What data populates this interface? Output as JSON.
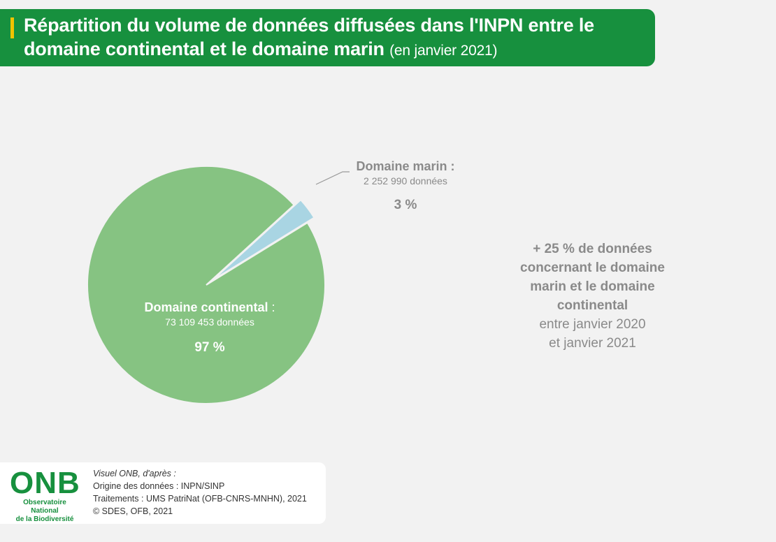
{
  "header": {
    "title": "Répartition du volume de données diffusées dans l'INPN entre le domaine continental et le domaine marin",
    "subtitle": "(en janvier 2021)"
  },
  "colors": {
    "continental": "#86c382",
    "marin": "#a9d5e3",
    "header": "#17903e",
    "accent": "#f0c300",
    "label_grey": "#8a8a8a"
  },
  "chart_data": {
    "type": "pie",
    "title": "Répartition du volume de données diffusées dans l'INPN entre le domaine continental et le domaine marin (en janvier 2021)",
    "slices": [
      {
        "label": "Domaine continental",
        "colon": ":",
        "count_text": "73 109 453 données",
        "value": 73109453,
        "percent_text": "97 %",
        "exploded": false
      },
      {
        "label": "Domaine marin",
        "colon": ":",
        "count_text": "2 252 990 données",
        "value": 2252990,
        "percent_text": "3 %",
        "exploded": true
      }
    ]
  },
  "note": {
    "bold_line1": "+ 25 % de données",
    "bold_line2": "concernant le domaine",
    "bold_line3": "marin et le domaine",
    "bold_line4": "continental",
    "line5": "entre janvier 2020",
    "line6": "et janvier 2021"
  },
  "footer": {
    "logo_mark": "ONB",
    "logo_line1": "Observatoire National",
    "logo_line2": "de la Biodiversité",
    "credit_intro": "Visuel ONB, d'après :",
    "credit_line1": "Origine des données : INPN/SINP",
    "credit_line2": "Traitements : UMS PatriNat (OFB-CNRS-MNHN), 2021",
    "credit_line3": "© SDES, OFB, 2021"
  }
}
